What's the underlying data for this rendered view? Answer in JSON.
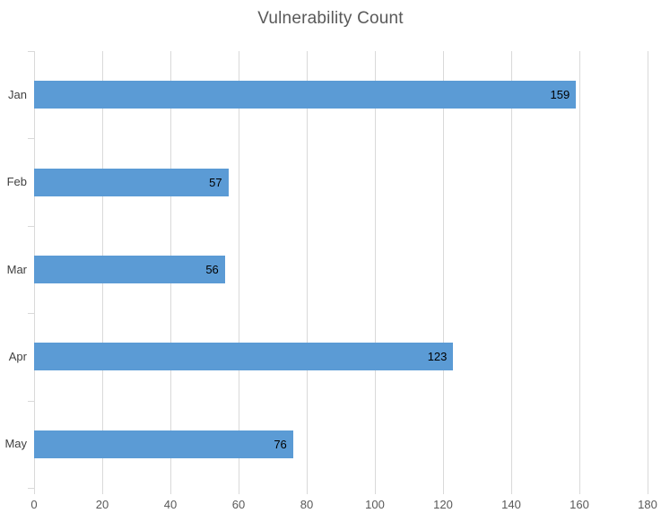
{
  "chart_data": {
    "type": "bar",
    "orientation": "horizontal",
    "title": "Vulnerability Count",
    "categories": [
      "Jan",
      "Feb",
      "Mar",
      "Apr",
      "May"
    ],
    "values": [
      159,
      57,
      56,
      123,
      76
    ],
    "series": [
      {
        "name": "Vulnerability Count",
        "values": [
          159,
          57,
          56,
          123,
          76
        ]
      }
    ],
    "xlabel": "",
    "ylabel": "",
    "xlim": [
      0,
      180
    ],
    "x_ticks": [
      0,
      20,
      40,
      60,
      80,
      100,
      120,
      140,
      160,
      180
    ],
    "grid": true,
    "legend": "none",
    "data_labels_position": "inside-end",
    "colors": {
      "bar": "#5B9BD5",
      "gridline": "#D9D9D9",
      "tick": "#D9D9D9",
      "axis_text": "#595959",
      "category_text": "#404040",
      "data_label_text": "#000000",
      "title_text": "#595959",
      "background": "#FFFFFF"
    }
  }
}
